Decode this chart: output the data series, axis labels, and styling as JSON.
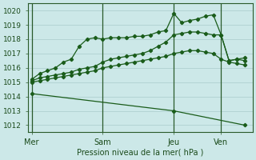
{
  "bg_color": "#cce8e8",
  "grid_color": "#aacccc",
  "line_color": "#1a5c1a",
  "xlabel": "Pression niveau de la mer( hPa )",
  "ylim": [
    1011.5,
    1020.5
  ],
  "yticks": [
    1012,
    1013,
    1014,
    1015,
    1016,
    1017,
    1018,
    1019,
    1020
  ],
  "xtick_labels": [
    "Mer",
    "Sam",
    "Jeu",
    "Ven"
  ],
  "xtick_positions": [
    0,
    9,
    18,
    24
  ],
  "vline_positions": [
    0,
    9,
    18,
    24
  ],
  "xlim": [
    -0.5,
    28
  ],
  "lines": [
    {
      "x": [
        0,
        1,
        2,
        3,
        4,
        5,
        6,
        7,
        8,
        9,
        10,
        11,
        12,
        13,
        14,
        15,
        16,
        17,
        18,
        19,
        20,
        21,
        22,
        23,
        24,
        25,
        26,
        27
      ],
      "y": [
        1015.0,
        1015.1,
        1015.2,
        1015.3,
        1015.4,
        1015.5,
        1015.6,
        1015.7,
        1015.8,
        1016.0,
        1016.1,
        1016.2,
        1016.3,
        1016.4,
        1016.5,
        1016.6,
        1016.7,
        1016.8,
        1017.0,
        1017.1,
        1017.2,
        1017.2,
        1017.1,
        1017.0,
        1016.6,
        1016.4,
        1016.3,
        1016.2
      ]
    },
    {
      "x": [
        0,
        1,
        2,
        3,
        4,
        5,
        6,
        7,
        8,
        9,
        10,
        11,
        12,
        13,
        14,
        15,
        16,
        17,
        18,
        19,
        20,
        21,
        22,
        23,
        24,
        25,
        26,
        27
      ],
      "y": [
        1015.1,
        1015.3,
        1015.4,
        1015.5,
        1015.6,
        1015.7,
        1015.9,
        1016.0,
        1016.1,
        1016.4,
        1016.6,
        1016.7,
        1016.8,
        1016.9,
        1017.0,
        1017.2,
        1017.5,
        1017.8,
        1018.3,
        1018.4,
        1018.5,
        1018.5,
        1018.4,
        1018.3,
        1018.3,
        1016.5,
        1016.6,
        1016.5
      ]
    },
    {
      "x": [
        0,
        1,
        2,
        3,
        4,
        5,
        6,
        7,
        8,
        9,
        10,
        11,
        12,
        13,
        14,
        15,
        16,
        17,
        18,
        19,
        20,
        21,
        22,
        23,
        24,
        25,
        26,
        27
      ],
      "y": [
        1015.2,
        1015.6,
        1015.8,
        1016.0,
        1016.4,
        1016.6,
        1017.5,
        1018.0,
        1018.1,
        1018.0,
        1018.1,
        1018.1,
        1018.1,
        1018.2,
        1018.2,
        1018.3,
        1018.5,
        1018.6,
        1019.8,
        1019.15,
        1019.3,
        1019.4,
        1019.6,
        1019.7,
        1018.3,
        1016.5,
        1016.6,
        1016.7
      ]
    },
    {
      "x": [
        0,
        18,
        27
      ],
      "y": [
        1014.2,
        1013.0,
        1012.0
      ]
    }
  ]
}
